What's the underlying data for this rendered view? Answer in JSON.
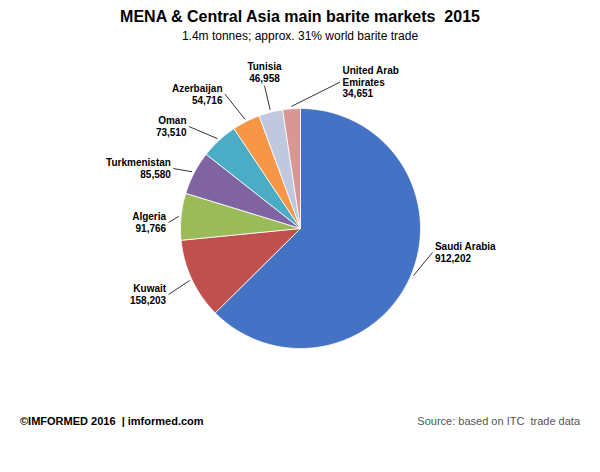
{
  "chart_data": {
    "type": "pie",
    "title": "MENA & Central Asia main barite markets  2015",
    "subtitle": "1.4m tonnes; approx. 31% world barite trade",
    "annotations": [
      "Source: based on ITC  trade data",
      "©IMFORMED 2016  | imformed.com"
    ],
    "categories": [
      "Saudi Arabia",
      "Kuwait",
      "Algeria",
      "Turkmenistan",
      "Oman",
      "Azerbaijan",
      "Tunisia",
      "United Arab\nEmirates"
    ],
    "values": [
      912202,
      158203,
      91766,
      85580,
      73510,
      54716,
      46958,
      34651
    ],
    "value_labels": [
      "912,202",
      "158,203",
      "91,766",
      "85,580",
      "73,510",
      "54,716",
      "46,958",
      "34,651"
    ],
    "colors": [
      "#4472C4",
      "#C0504D",
      "#9BBB59",
      "#8064A2",
      "#4BACC6",
      "#F79646",
      "#C0C8E0",
      "#D99694"
    ],
    "data_labels": true
  }
}
